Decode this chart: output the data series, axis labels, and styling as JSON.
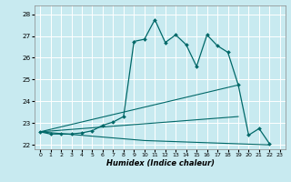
{
  "title": "",
  "xlabel": "Humidex (Indice chaleur)",
  "background_color": "#c8eaf0",
  "grid_color": "#ffffff",
  "line_color": "#006868",
  "xlim": [
    -0.5,
    23.5
  ],
  "ylim": [
    21.8,
    28.4
  ],
  "xticks": [
    0,
    1,
    2,
    3,
    4,
    5,
    6,
    7,
    8,
    9,
    10,
    11,
    12,
    13,
    14,
    15,
    16,
    17,
    18,
    19,
    20,
    21,
    22,
    23
  ],
  "yticks": [
    22,
    23,
    24,
    25,
    26,
    27,
    28
  ],
  "line1_x": [
    0,
    1,
    2,
    3,
    4,
    5,
    6,
    7,
    8,
    9,
    10,
    11,
    12,
    13,
    14,
    15,
    16,
    17,
    18,
    19,
    20,
    21,
    22
  ],
  "line1_y": [
    22.6,
    22.5,
    22.5,
    22.5,
    22.55,
    22.65,
    22.9,
    23.05,
    23.3,
    26.75,
    26.85,
    27.75,
    26.7,
    27.05,
    26.6,
    25.6,
    27.05,
    26.55,
    26.25,
    24.75,
    22.45,
    22.75,
    22.05
  ],
  "line2_x": [
    0,
    19
  ],
  "line2_y": [
    22.6,
    24.75
  ],
  "line3_x": [
    0,
    19
  ],
  "line3_y": [
    22.6,
    23.3
  ],
  "line4_x": [
    0,
    10,
    22
  ],
  "line4_y": [
    22.6,
    22.2,
    22.0
  ]
}
